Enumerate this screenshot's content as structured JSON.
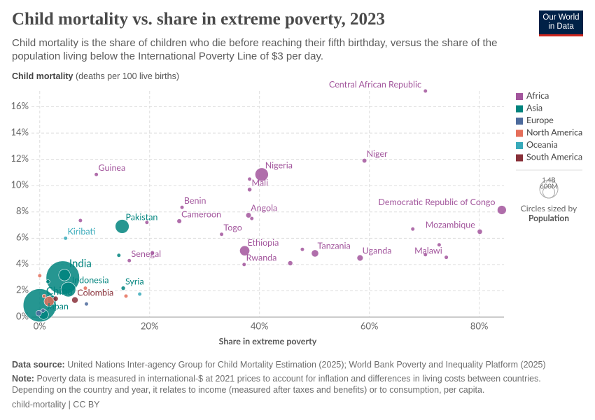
{
  "chart_data": {
    "type": "scatter",
    "title": "Child mortality vs. share in extreme poverty, 2023",
    "subtitle": "Child mortality is the share of children who die before reaching their fifth birthday, versus the share of the population living below the International Poverty Line of $3 per day.",
    "y_label": "Child mortality",
    "y_label_unit": "(deaths per 100 live births)",
    "x_label": "Share in extreme poverty",
    "logo": [
      "Our World",
      "in Data"
    ],
    "xlim": [
      -1.5,
      84.5
    ],
    "ylim": [
      0,
      17.2
    ],
    "xticks": [
      {
        "value": 0,
        "label": "0%"
      },
      {
        "value": 20,
        "label": "20%"
      },
      {
        "value": 40,
        "label": "40%"
      },
      {
        "value": 60,
        "label": "60%"
      },
      {
        "value": 80,
        "label": "80%"
      }
    ],
    "yticks": [
      {
        "value": 0,
        "label": "0%"
      },
      {
        "value": 2,
        "label": "2%"
      },
      {
        "value": 4,
        "label": "4%"
      },
      {
        "value": 6,
        "label": "6%"
      },
      {
        "value": 8,
        "label": "8%"
      },
      {
        "value": 10,
        "label": "10%"
      },
      {
        "value": 12,
        "label": "12%"
      },
      {
        "value": 14,
        "label": "14%"
      },
      {
        "value": 16,
        "label": "16%"
      }
    ],
    "grid": true,
    "legend_position": "right",
    "series": [
      {
        "name": "Africa",
        "color": "#a2559c",
        "x": [
          70.2,
          59.1,
          40.4,
          38.2,
          38.2,
          10.3,
          25.9,
          25.4,
          19.5,
          38.0,
          38.6,
          33.1,
          37.3,
          37.2,
          50.1,
          45.6,
          47.8,
          58.3,
          84.1,
          80.1,
          67.9,
          74.0,
          72.7,
          70.2,
          16.3,
          20.5,
          7.4
        ],
        "values": [
          17.2,
          11.9,
          10.85,
          9.7,
          10.5,
          10.85,
          8.35,
          7.3,
          7.2,
          7.75,
          7.5,
          6.3,
          5.05,
          4.0,
          4.85,
          4.1,
          5.15,
          4.5,
          8.15,
          6.5,
          6.7,
          4.55,
          5.5,
          4.75,
          4.3,
          4.9,
          7.35
        ],
        "sizes": [
          5700000,
          27000000,
          228000000,
          24000000,
          19000000,
          14000000,
          14000000,
          29000000,
          6000000,
          37000000,
          3000000,
          9000000,
          129000000,
          14000000,
          67000000,
          31000000,
          2000000,
          49000000,
          105000000,
          34000000,
          20000000,
          21000000,
          4000000,
          3000000,
          3000000,
          18000000,
          2500000
        ],
        "labels": [
          "Central African Republic",
          "Niger",
          "Nigeria",
          "Mali",
          null,
          "Guinea",
          "Benin",
          "Cameroon",
          null,
          "Angola",
          null,
          "Togo",
          "Ethiopia",
          "Rwanda",
          "Tanzania",
          null,
          null,
          "Uganda",
          "Democratic Republic of Congo",
          "Mozambique",
          null,
          "Malawi",
          null,
          null,
          "Senegal",
          null,
          null
        ]
      },
      {
        "name": "Asia",
        "color": "#00847e",
        "x": [
          15.0,
          4.2,
          5.2,
          0.0,
          0.7,
          15.2,
          4.5,
          14.4,
          1.5,
          2.2
        ],
        "values": [
          6.9,
          3.0,
          2.1,
          0.9,
          0.2,
          2.2,
          3.2,
          4.7,
          2.7,
          1.3
        ],
        "sizes": [
          247000000,
          1440000000,
          281000000,
          1410000000,
          124000000,
          23000000,
          173000000,
          3000000,
          8000000,
          115000000
        ],
        "labels": [
          "Pakistan",
          "India",
          "Indonesia",
          "China",
          "Japan",
          "Syria",
          null,
          null,
          null,
          null
        ]
      },
      {
        "name": "Europe",
        "color": "#4c6a9c",
        "x": [
          8.5,
          -0.2,
          0.6
        ],
        "values": [
          1.0,
          0.3,
          0.5
        ],
        "sizes": [
          2000000,
          40000000,
          10000000
        ],
        "labels": [
          null,
          null,
          null
        ]
      },
      {
        "name": "North America",
        "color": "#e56e5a",
        "x": [
          0.0,
          8.3,
          15.7,
          1.7,
          0.8
        ],
        "values": [
          3.15,
          2.2,
          1.6,
          1.2,
          1.6
        ],
        "sizes": [
          2000000,
          3000000,
          3000000,
          129000000,
          5000000
        ],
        "labels": [
          null,
          null,
          null,
          null,
          null
        ]
      },
      {
        "name": "Oceania",
        "color": "#38aaba",
        "x": [
          4.7,
          18.2
        ],
        "values": [
          6.0,
          1.75
        ],
        "sizes": [
          130000,
          1000000
        ],
        "labels": [
          "Kiribati",
          null
        ]
      },
      {
        "name": "South America",
        "color": "#883039",
        "x": [
          6.4,
          2.9
        ],
        "values": [
          1.3,
          1.4
        ],
        "sizes": [
          52000000,
          34000000
        ],
        "labels": [
          "Colombia",
          null
        ]
      }
    ],
    "size_legend": {
      "title": "Circles sized by",
      "variable": "Population",
      "values": [
        {
          "value": 1400000000,
          "label": "1.4B"
        },
        {
          "value": 600000000,
          "label": "600M"
        }
      ]
    },
    "source_label": "Data source:",
    "source": "United Nations Inter-agency Group for Child Mortality Estimation (2025); World Bank Poverty and Inequality Platform (2025)",
    "note_label": "Note:",
    "note": "Poverty data is measured in international-$ at 2021 prices to account for inflation and differences in living costs between countries. Depending on the country and year, it relates to income (measured after taxes and benefits) or to consumption, per capita.",
    "license": "child-mortality | CC BY"
  }
}
